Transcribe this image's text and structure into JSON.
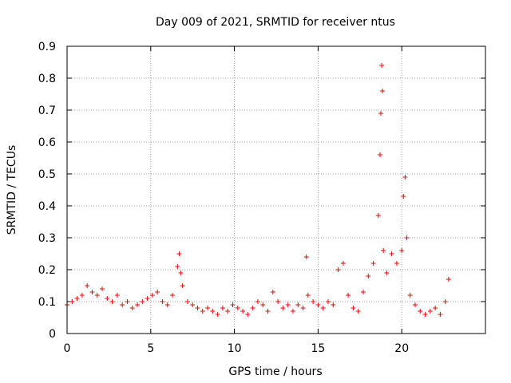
{
  "chart_data": {
    "type": "scatter",
    "title": "Day 009 of 2021, SRMTID for receiver ntus",
    "xlabel": "GPS time / hours",
    "ylabel": "SRMTID / TECUs",
    "xlim": [
      0,
      25
    ],
    "ylim": [
      0,
      0.9
    ],
    "xticks": [
      0,
      5,
      10,
      15,
      20
    ],
    "yticks": [
      0,
      0.1,
      0.2,
      0.3,
      0.4,
      0.5,
      0.6,
      0.7,
      0.8,
      0.9
    ],
    "xtick_labels": [
      "0",
      "5",
      "10",
      "15",
      "20"
    ],
    "ytick_labels": [
      "0",
      "0.1",
      "0.2",
      "0.3",
      "0.4",
      "0.5",
      "0.6",
      "0.7",
      "0.8",
      "0.9"
    ],
    "grid": true,
    "marker": "+",
    "color": "#ff0000",
    "series": [
      {
        "name": "SRMTID",
        "x": [
          0.0,
          0.3,
          0.6,
          0.9,
          1.2,
          1.5,
          1.8,
          2.1,
          2.4,
          2.7,
          3.0,
          3.3,
          3.6,
          3.9,
          4.2,
          4.5,
          4.8,
          5.1,
          5.4,
          5.7,
          6.0,
          6.3,
          6.6,
          6.7,
          6.8,
          6.9,
          7.2,
          7.5,
          7.8,
          8.1,
          8.4,
          8.7,
          9.0,
          9.3,
          9.6,
          9.9,
          10.2,
          10.5,
          10.8,
          11.1,
          11.4,
          11.7,
          12.0,
          12.3,
          12.6,
          12.9,
          13.2,
          13.5,
          13.8,
          14.1,
          14.3,
          14.4,
          14.7,
          15.0,
          15.3,
          15.6,
          15.9,
          16.2,
          16.5,
          16.8,
          17.1,
          17.4,
          17.7,
          18.0,
          18.3,
          18.6,
          18.7,
          18.75,
          18.8,
          18.85,
          18.9,
          19.1,
          19.4,
          19.7,
          20.0,
          20.1,
          20.2,
          20.3,
          20.5,
          20.8,
          21.1,
          21.4,
          21.7,
          22.0,
          22.3,
          22.6,
          22.8
        ],
        "y": [
          0.09,
          0.1,
          0.11,
          0.12,
          0.15,
          0.13,
          0.12,
          0.14,
          0.11,
          0.1,
          0.12,
          0.09,
          0.1,
          0.08,
          0.09,
          0.1,
          0.11,
          0.12,
          0.13,
          0.1,
          0.09,
          0.12,
          0.21,
          0.25,
          0.19,
          0.15,
          0.1,
          0.09,
          0.08,
          0.07,
          0.08,
          0.07,
          0.06,
          0.08,
          0.07,
          0.09,
          0.08,
          0.07,
          0.06,
          0.08,
          0.1,
          0.09,
          0.07,
          0.13,
          0.1,
          0.08,
          0.09,
          0.07,
          0.09,
          0.08,
          0.24,
          0.12,
          0.1,
          0.09,
          0.08,
          0.1,
          0.09,
          0.2,
          0.22,
          0.12,
          0.08,
          0.07,
          0.13,
          0.18,
          0.22,
          0.37,
          0.56,
          0.69,
          0.84,
          0.76,
          0.26,
          0.19,
          0.25,
          0.22,
          0.26,
          0.43,
          0.49,
          0.3,
          0.12,
          0.09,
          0.07,
          0.06,
          0.07,
          0.08,
          0.06,
          0.1,
          0.17
        ]
      }
    ]
  }
}
